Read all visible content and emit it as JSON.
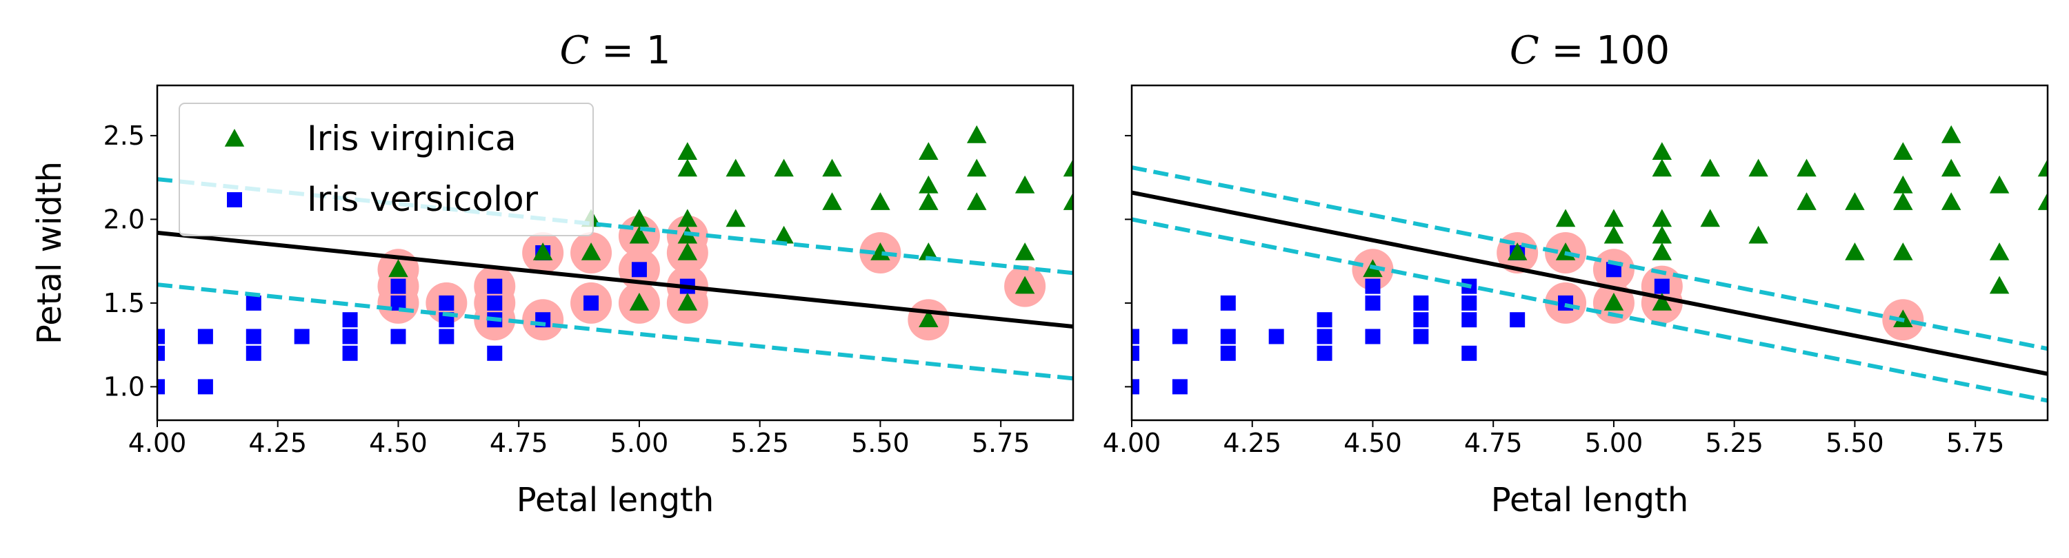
{
  "chart_data": [
    {
      "type": "scatter",
      "title_var": "C",
      "title_eq": " = ",
      "title_val": "1",
      "xlabel": "Petal length",
      "ylabel": "Petal width",
      "xlim": [
        4.0,
        5.9
      ],
      "ylim": [
        0.8,
        2.8
      ],
      "xticks": [
        4.0,
        4.25,
        4.5,
        4.75,
        5.0,
        5.25,
        5.5,
        5.75
      ],
      "xtick_labels": [
        "4.00",
        "4.25",
        "4.50",
        "4.75",
        "5.00",
        "5.25",
        "5.50",
        "5.75"
      ],
      "yticks": [
        1.0,
        1.5,
        2.0,
        2.5
      ],
      "ytick_labels": [
        "1.0",
        "1.5",
        "2.0",
        "2.5"
      ],
      "show_ytick_labels": true,
      "legend": {
        "position": "upper-left",
        "entries": [
          {
            "label": "Iris virginica",
            "marker": "triangle",
            "color": "#008000"
          },
          {
            "label": "Iris versicolor",
            "marker": "square",
            "color": "#0000ff"
          }
        ]
      },
      "decision_boundary": {
        "slope": -0.295,
        "intercept": 1.92,
        "color": "#000000"
      },
      "margins": [
        {
          "slope": -0.295,
          "intercept": 2.24,
          "color": "#17becf"
        },
        {
          "slope": -0.295,
          "intercept": 1.61,
          "color": "#17becf"
        }
      ],
      "support_vectors": [
        [
          4.5,
          1.5
        ],
        [
          4.5,
          1.6
        ],
        [
          4.5,
          1.7
        ],
        [
          4.6,
          1.5
        ],
        [
          4.7,
          1.4
        ],
        [
          4.7,
          1.5
        ],
        [
          4.7,
          1.6
        ],
        [
          4.8,
          1.4
        ],
        [
          4.8,
          1.8
        ],
        [
          4.9,
          1.5
        ],
        [
          4.9,
          1.8
        ],
        [
          5.0,
          1.5
        ],
        [
          5.0,
          1.7
        ],
        [
          5.0,
          1.9
        ],
        [
          5.1,
          1.5
        ],
        [
          5.1,
          1.6
        ],
        [
          5.1,
          1.8
        ],
        [
          5.1,
          1.9
        ],
        [
          5.5,
          1.8
        ],
        [
          5.6,
          1.4
        ],
        [
          5.8,
          1.6
        ]
      ],
      "sv_color": "#ffaaaa"
    },
    {
      "type": "scatter",
      "title_var": "C",
      "title_eq": " = ",
      "title_val": "100",
      "xlabel": "Petal length",
      "ylabel": "",
      "xlim": [
        4.0,
        5.9
      ],
      "ylim": [
        0.8,
        2.8
      ],
      "xticks": [
        4.0,
        4.25,
        4.5,
        4.75,
        5.0,
        5.25,
        5.5,
        5.75
      ],
      "xtick_labels": [
        "4.00",
        "4.25",
        "4.50",
        "4.75",
        "5.00",
        "5.25",
        "5.50",
        "5.75"
      ],
      "yticks": [
        1.0,
        1.5,
        2.0,
        2.5
      ],
      "ytick_labels": [
        "",
        "",
        "",
        ""
      ],
      "show_ytick_labels": false,
      "legend": null,
      "decision_boundary": {
        "slope": -0.57,
        "intercept": 2.16,
        "color": "#000000"
      },
      "margins": [
        {
          "slope": -0.57,
          "intercept": 2.31,
          "color": "#17becf"
        },
        {
          "slope": -0.57,
          "intercept": 2.0,
          "color": "#17becf"
        }
      ],
      "support_vectors": [
        [
          4.5,
          1.7
        ],
        [
          4.8,
          1.8
        ],
        [
          4.9,
          1.5
        ],
        [
          4.9,
          1.8
        ],
        [
          5.0,
          1.5
        ],
        [
          5.0,
          1.7
        ],
        [
          5.1,
          1.5
        ],
        [
          5.1,
          1.6
        ],
        [
          5.6,
          1.4
        ]
      ],
      "sv_color": "#ffaaaa"
    }
  ],
  "points": {
    "virginica": [
      [
        4.5,
        1.7
      ],
      [
        4.8,
        1.8
      ],
      [
        4.9,
        1.8
      ],
      [
        4.9,
        2.0
      ],
      [
        5.0,
        1.5
      ],
      [
        5.0,
        2.0
      ],
      [
        5.0,
        1.9
      ],
      [
        5.1,
        1.5
      ],
      [
        5.1,
        1.8
      ],
      [
        5.1,
        1.9
      ],
      [
        5.1,
        2.0
      ],
      [
        5.1,
        2.3
      ],
      [
        5.1,
        2.4
      ],
      [
        5.2,
        2.0
      ],
      [
        5.2,
        2.3
      ],
      [
        5.3,
        1.9
      ],
      [
        5.3,
        2.3
      ],
      [
        5.4,
        2.1
      ],
      [
        5.4,
        2.3
      ],
      [
        5.5,
        1.8
      ],
      [
        5.5,
        2.1
      ],
      [
        5.6,
        1.4
      ],
      [
        5.6,
        1.8
      ],
      [
        5.6,
        2.1
      ],
      [
        5.6,
        2.2
      ],
      [
        5.6,
        2.4
      ],
      [
        5.7,
        2.1
      ],
      [
        5.7,
        2.3
      ],
      [
        5.7,
        2.5
      ],
      [
        5.8,
        1.6
      ],
      [
        5.8,
        1.8
      ],
      [
        5.8,
        2.2
      ],
      [
        5.9,
        2.1
      ],
      [
        5.9,
        2.3
      ]
    ],
    "versicolor": [
      [
        4.0,
        1.0
      ],
      [
        4.0,
        1.2
      ],
      [
        4.0,
        1.3
      ],
      [
        4.1,
        1.0
      ],
      [
        4.1,
        1.3
      ],
      [
        4.2,
        1.2
      ],
      [
        4.2,
        1.3
      ],
      [
        4.2,
        1.5
      ],
      [
        4.3,
        1.3
      ],
      [
        4.4,
        1.2
      ],
      [
        4.4,
        1.3
      ],
      [
        4.4,
        1.4
      ],
      [
        4.5,
        1.3
      ],
      [
        4.5,
        1.5
      ],
      [
        4.5,
        1.6
      ],
      [
        4.6,
        1.3
      ],
      [
        4.6,
        1.4
      ],
      [
        4.6,
        1.5
      ],
      [
        4.7,
        1.2
      ],
      [
        4.7,
        1.4
      ],
      [
        4.7,
        1.5
      ],
      [
        4.7,
        1.6
      ],
      [
        4.8,
        1.4
      ],
      [
        4.8,
        1.8
      ],
      [
        4.9,
        1.5
      ],
      [
        5.0,
        1.7
      ],
      [
        5.1,
        1.6
      ]
    ]
  }
}
